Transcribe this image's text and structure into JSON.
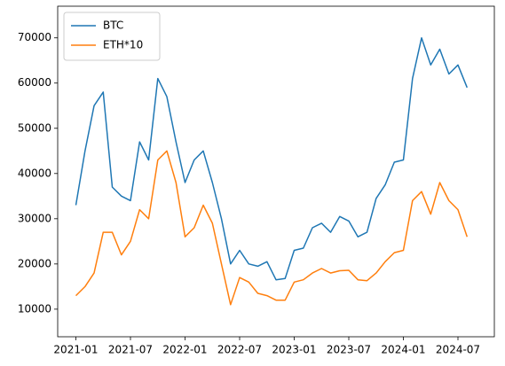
{
  "chart_data": {
    "type": "line",
    "x": [
      "2021-01",
      "2021-02",
      "2021-03",
      "2021-04",
      "2021-05",
      "2021-06",
      "2021-07",
      "2021-08",
      "2021-09",
      "2021-10",
      "2021-11",
      "2021-12",
      "2022-01",
      "2022-02",
      "2022-03",
      "2022-04",
      "2022-05",
      "2022-06",
      "2022-07",
      "2022-08",
      "2022-09",
      "2022-10",
      "2022-11",
      "2022-12",
      "2023-01",
      "2023-02",
      "2023-03",
      "2023-04",
      "2023-05",
      "2023-06",
      "2023-07",
      "2023-08",
      "2023-09",
      "2023-10",
      "2023-11",
      "2023-12",
      "2024-01",
      "2024-02",
      "2024-03",
      "2024-04",
      "2024-05",
      "2024-06",
      "2024-07",
      "2024-08"
    ],
    "series": [
      {
        "name": "BTC",
        "color": "#1f77b4",
        "values": [
          33000,
          45000,
          55000,
          58000,
          37000,
          35000,
          34000,
          47000,
          43000,
          61000,
          57000,
          47000,
          38000,
          43000,
          45000,
          38000,
          30000,
          20000,
          23000,
          20000,
          19500,
          20500,
          16500,
          16800,
          23000,
          23500,
          28000,
          29000,
          27000,
          30500,
          29500,
          26000,
          27000,
          34500,
          37500,
          42500,
          43000,
          61000,
          70000,
          64000,
          67500,
          62000,
          64000,
          59000
        ]
      },
      {
        "name": "ETH*10",
        "color": "#ff7f0e",
        "values": [
          13000,
          15000,
          18000,
          27000,
          27000,
          22000,
          25000,
          32000,
          30000,
          43000,
          45000,
          38000,
          26000,
          28000,
          33000,
          29000,
          20000,
          11000,
          17000,
          16000,
          13500,
          13000,
          12000,
          12000,
          16000,
          16500,
          18000,
          19000,
          18000,
          18500,
          18600,
          16500,
          16300,
          18000,
          20500,
          22500,
          23000,
          34000,
          36000,
          31000,
          38000,
          34000,
          32000,
          26000
        ]
      }
    ],
    "xlim": [
      "2020-11",
      "2024-11"
    ],
    "xticks": [
      "2021-01",
      "2021-07",
      "2022-01",
      "2022-07",
      "2023-01",
      "2023-07",
      "2024-01",
      "2024-07"
    ],
    "ylim": [
      3900,
      77000
    ],
    "yticks": [
      10000,
      20000,
      30000,
      40000,
      50000,
      60000,
      70000
    ],
    "legend": "upper left"
  }
}
